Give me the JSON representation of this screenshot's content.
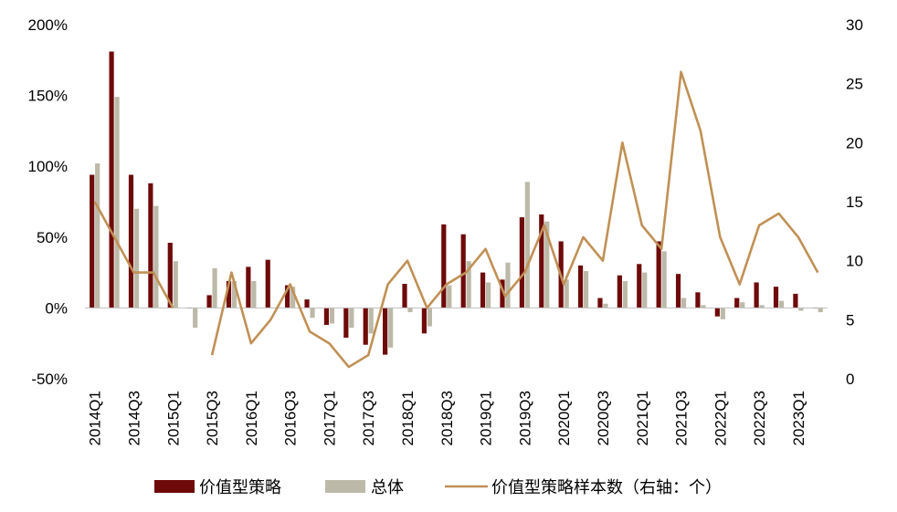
{
  "chart_data": {
    "type": "bar",
    "title": "",
    "categories": [
      "2014Q1",
      "2014Q2",
      "2014Q3",
      "2014Q4",
      "2015Q1",
      "2015Q2",
      "2015Q3",
      "2015Q4",
      "2016Q1",
      "2016Q2",
      "2016Q3",
      "2016Q4",
      "2017Q1",
      "2017Q2",
      "2017Q3",
      "2017Q4",
      "2018Q1",
      "2018Q2",
      "2018Q3",
      "2018Q4",
      "2019Q1",
      "2019Q2",
      "2019Q3",
      "2019Q4",
      "2020Q1",
      "2020Q2",
      "2020Q3",
      "2020Q4",
      "2021Q1",
      "2021Q2",
      "2021Q3",
      "2021Q4",
      "2022Q1",
      "2022Q2",
      "2022Q3",
      "2022Q4",
      "2023Q1",
      "2023Q2"
    ],
    "visible_tick_labels": [
      "2014Q1",
      "2014Q3",
      "2015Q1",
      "2015Q3",
      "2016Q1",
      "2016Q3",
      "2017Q1",
      "2017Q3",
      "2018Q1",
      "2018Q3",
      "2019Q1",
      "2019Q3",
      "2020Q1",
      "2020Q3",
      "2021Q1",
      "2021Q3",
      "2022Q1",
      "2022Q3",
      "2023Q1"
    ],
    "series": [
      {
        "name": "价值型策略",
        "kind": "bar",
        "axis": "left",
        "color": "#6e0a0a",
        "values": [
          94,
          181,
          94,
          88,
          46,
          0,
          9,
          19,
          29,
          34,
          16,
          6,
          -12,
          -21,
          -26,
          -33,
          17,
          -18,
          59,
          52,
          25,
          20,
          64,
          66,
          47,
          30,
          7,
          23,
          31,
          47,
          24,
          11,
          -6,
          7,
          18,
          15,
          10,
          0
        ]
      },
      {
        "name": "总体",
        "kind": "bar",
        "axis": "left",
        "color": "#bcb9a8",
        "values": [
          102,
          149,
          70,
          72,
          33,
          -14,
          28,
          19,
          19,
          0,
          15,
          -7,
          -11,
          -14,
          -18,
          -28,
          -3,
          -13,
          16,
          33,
          18,
          32,
          89,
          61,
          20,
          26,
          3,
          19,
          25,
          40,
          7,
          2,
          -8,
          4,
          2,
          5,
          -2,
          -3
        ]
      },
      {
        "name": "价值型策略样本数（右轴：个）",
        "kind": "line",
        "axis": "right",
        "color": "#c09055",
        "values": [
          15,
          12,
          9,
          9,
          6,
          null,
          2,
          9,
          3,
          5,
          8,
          4,
          3,
          1,
          2,
          8,
          10,
          6,
          8,
          9,
          11,
          7,
          9,
          13,
          8,
          12,
          10,
          20,
          13,
          11,
          26,
          21,
          12,
          8,
          13,
          14,
          12,
          9
        ]
      }
    ],
    "left_axis": {
      "ylim": [
        -50,
        200
      ],
      "ticks": [
        "-50%",
        "0%",
        "50%",
        "100%",
        "150%",
        "200%"
      ],
      "tick_values": [
        -50,
        0,
        50,
        100,
        150,
        200
      ]
    },
    "right_axis": {
      "ylim": [
        0,
        30
      ],
      "ticks": [
        "0",
        "5",
        "10",
        "15",
        "20",
        "25",
        "30"
      ],
      "tick_values": [
        0,
        5,
        10,
        15,
        20,
        25,
        30
      ]
    },
    "xlabel": "",
    "ylabel": "",
    "grid": false,
    "legend_position": "bottom"
  }
}
